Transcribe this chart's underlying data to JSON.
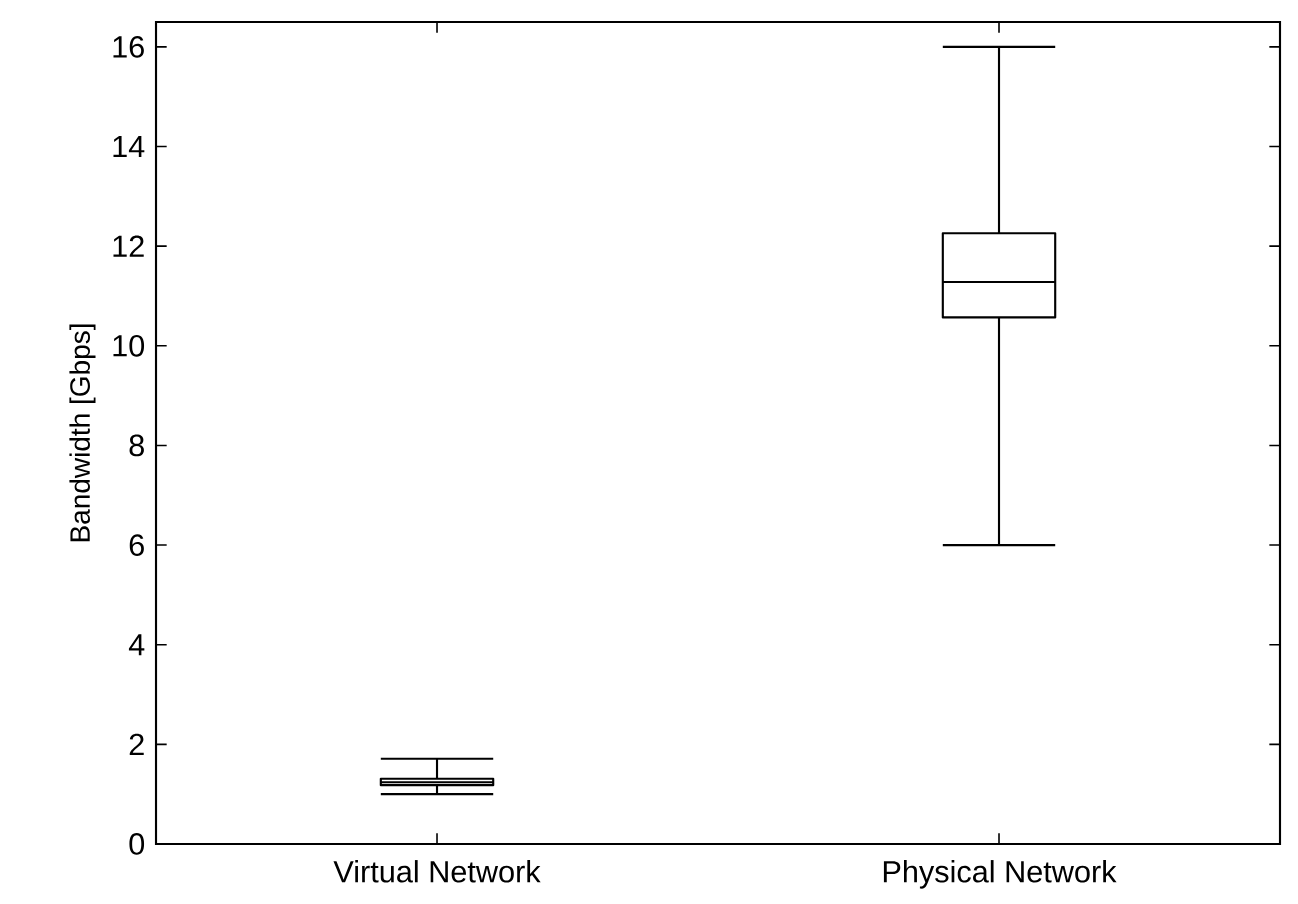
{
  "chart_data": {
    "type": "box",
    "ylabel": "Bandwidth [Gbps]",
    "categories": [
      "Virtual Network",
      "Physical Network"
    ],
    "boxes": [
      {
        "low": 1.0,
        "q1": 1.18,
        "median": 1.24,
        "q3": 1.31,
        "high": 1.71
      },
      {
        "low": 6.0,
        "q1": 10.57,
        "median": 11.28,
        "q3": 12.26,
        "high": 16.0
      }
    ],
    "ylim": [
      0,
      16.5
    ],
    "yticks": [
      0,
      2,
      4,
      6,
      8,
      10,
      12,
      14,
      16
    ]
  }
}
